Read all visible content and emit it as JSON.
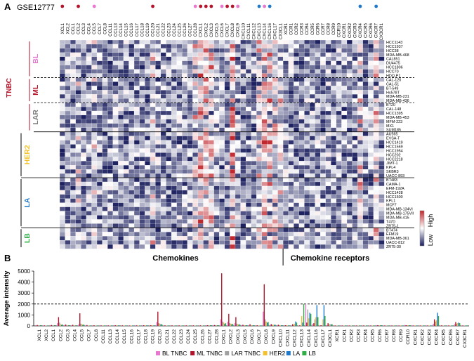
{
  "panel_a": {
    "letter": "A",
    "dataset": "GSE12777",
    "x_left_label": "Chemokines",
    "x_right_label": "Chemokine receptors",
    "colorbar": {
      "high": "High",
      "low": "Low"
    },
    "tnbc_label": "TNBC",
    "groups": [
      {
        "name": "BL",
        "color": "#e678d0"
      },
      {
        "name": "ML",
        "color": "#b5132a"
      },
      {
        "name": "LAR",
        "color": "#7a7a7a"
      },
      {
        "name": "HER2",
        "color": "#f2c12e"
      },
      {
        "name": "LA",
        "color": "#1f78c8"
      },
      {
        "name": "LB",
        "color": "#2fae48"
      }
    ],
    "genes": [
      "XCL1",
      "XCL2",
      "CCL1",
      "CCL2",
      "CCL3",
      "CCL4",
      "CCL5",
      "CCL7",
      "CCL8",
      "CCL11",
      "CCL13",
      "CCL14",
      "CCL15",
      "CCL16",
      "CCL17",
      "CCL18",
      "CCL19",
      "CCL20",
      "CCL21",
      "CCL22",
      "CCL23",
      "CCL24",
      "CCL25",
      "CCL26",
      "CCL27",
      "CCL28",
      "CXCL1",
      "CXCL2",
      "CXCL3",
      "CXCL5",
      "CXCL6",
      "CXCL7",
      "CXCL8",
      "CXCL9",
      "CXCL10",
      "CXCL11",
      "CXCL12",
      "CXCL13",
      "CXCL14",
      "CXCL16",
      "CXCL17",
      "CX3CL1",
      "XCR1",
      "CCR1",
      "CCR2",
      "CCR3",
      "CCR4",
      "CCR5",
      "CCR6",
      "CCR7",
      "CCR8",
      "CCR9",
      "CCR10",
      "CXCR1",
      "CXCR2",
      "CXCR3",
      "CXCR4",
      "CXCR5",
      "CXCR6",
      "CXCR7",
      "CX3CR1"
    ],
    "cell_lines": [
      "HCC1143",
      "HCC1937",
      "HCC38",
      "MDA-MB-468",
      "CAL851",
      "DU4475",
      "HCC1806",
      "HCC70",
      "HDQ-P1",
      "CAL-120",
      "CAL-51",
      "BT-549",
      "Hs578T",
      "MDA-MB-231",
      "MDA-MB-436",
      "BT20",
      "CAL-148",
      "HCC1395",
      "MDA-MB-453",
      "MFM-223",
      "MX1",
      "SUM185",
      "AU565",
      "EVSA-T",
      "HCC1419",
      "HCC1569",
      "HCC1954",
      "HCC202",
      "HCC2218",
      "JIMT-1",
      "KPL4",
      "SKBR3",
      "UACC-893",
      "BT483",
      "CAMA-1",
      "EFM-192A",
      "HCC1428",
      "HCC1500",
      "KPL1",
      "MCF7",
      "MDA-MB-134VI",
      "MDA-MB-175VII",
      "MDA-MB-415",
      "T47D",
      "ZR75-1",
      "BT474",
      "EFM19",
      "MDA-MB-361",
      "UACC-812",
      "ZR75-30"
    ],
    "markers": [
      {
        "gene": "CCL5",
        "color": "#e678d0"
      },
      {
        "gene": "XCL1",
        "color": "#b5132a"
      },
      {
        "gene": "CCL2",
        "color": "#b5132a"
      },
      {
        "gene": "CCL20",
        "color": "#b5132a"
      },
      {
        "gene": "CCL28",
        "color": "#e678d0"
      },
      {
        "gene": "CXCL1",
        "color": "#b5132a"
      },
      {
        "gene": "CXCL2",
        "color": "#b5132a"
      },
      {
        "gene": "CXCL3",
        "color": "#b5132a"
      },
      {
        "gene": "CXCL6",
        "color": "#e678d0"
      },
      {
        "gene": "CXCL7",
        "color": "#b5132a"
      },
      {
        "gene": "CXCL8",
        "color": "#b5132a"
      },
      {
        "gene": "CXCL9",
        "color": "#e678d0"
      },
      {
        "gene": "CXCL13",
        "color": "#1f78c8"
      },
      {
        "gene": "CXCL14",
        "color": "#e678d0"
      },
      {
        "gene": "CXCL16",
        "color": "#1f78c8"
      },
      {
        "gene": "CXCR4",
        "color": "#1f78c8"
      },
      {
        "gene": "CXCR7",
        "color": "#1f78c8"
      }
    ]
  },
  "panel_b": {
    "letter": "B"
  },
  "chart_data": [
    {
      "type": "heatmap",
      "title": "GSE12777",
      "xlabel": "Chemokines | Chemokine receptors",
      "ylabel": "",
      "scale": {
        "min_label": "Low",
        "max_label": "High",
        "colors": [
          "#1b1f5e",
          "#ffffff",
          "#c0282e"
        ]
      },
      "note": "Relative expression of chemokine / chemokine-receptor genes (columns) across breast cancer cell lines (rows), grouped by subtype BL, ML, LAR (TNBC), HER2, LA, LB."
    },
    {
      "type": "bar",
      "title": "",
      "xlabel": "",
      "ylabel": "Average intensity",
      "ylim": [
        0,
        5000
      ],
      "yticks": [
        0,
        1000,
        2000,
        3000,
        4000,
        5000
      ],
      "reference_line": 2000,
      "categories": [
        "XCL1",
        "XCL2",
        "CCL1",
        "CCL2",
        "CCL3",
        "CCL4",
        "CCL5",
        "CCL7",
        "CCL8",
        "CCL11",
        "CCL13",
        "CCL14",
        "CCL15",
        "CCL16",
        "CCL17",
        "CCL18",
        "CCL19",
        "CCL20",
        "CCL21",
        "CCL22",
        "CCL23",
        "CCL24",
        "CCL25",
        "CCL26",
        "CCL27",
        "CCL28",
        "CXCL1",
        "CXCL2",
        "CXCL3",
        "CXCL5",
        "CXCL6",
        "CXCL7",
        "CXCL8",
        "CXCL9",
        "CXCL10",
        "CXCL11",
        "CXCL12",
        "CXCL13",
        "CXCL14",
        "CXCL16",
        "CXCL17",
        "CX3CL1",
        "XCR1",
        "CCR1",
        "CCR2",
        "CCR3",
        "CCR4",
        "CCR5",
        "CCR6",
        "CCR7",
        "CCR8",
        "CCR9",
        "CCR10",
        "CXCR1",
        "CXCR2",
        "CXCR3",
        "CXCR4",
        "CXCR5",
        "CXCR6",
        "CXCR7",
        "CX3CR1"
      ],
      "series": [
        {
          "name": "BL TNBC",
          "color": "#e678d0",
          "values": [
            60,
            40,
            60,
            250,
            80,
            50,
            150,
            40,
            40,
            40,
            40,
            50,
            40,
            40,
            40,
            50,
            50,
            350,
            40,
            40,
            40,
            40,
            40,
            40,
            60,
            60,
            600,
            380,
            250,
            80,
            80,
            40,
            1300,
            120,
            80,
            60,
            50,
            40,
            2000,
            200,
            40,
            80,
            40,
            40,
            40,
            40,
            40,
            40,
            60,
            40,
            40,
            40,
            80,
            40,
            40,
            40,
            200,
            40,
            40,
            150,
            40
          ]
        },
        {
          "name": "ML TNBC",
          "color": "#b5132a",
          "values": [
            80,
            50,
            80,
            800,
            120,
            100,
            1150,
            80,
            60,
            50,
            50,
            60,
            50,
            40,
            50,
            60,
            60,
            1300,
            50,
            50,
            50,
            50,
            50,
            50,
            60,
            80,
            4800,
            1100,
            800,
            100,
            150,
            60,
            3800,
            150,
            100,
            60,
            150,
            50,
            300,
            250,
            60,
            250,
            40,
            40,
            40,
            40,
            40,
            40,
            60,
            40,
            40,
            40,
            60,
            40,
            40,
            40,
            600,
            50,
            40,
            350,
            40
          ]
        },
        {
          "name": "LAR TNBC",
          "color": "#a0a0a0",
          "values": [
            60,
            40,
            60,
            300,
            80,
            50,
            200,
            40,
            40,
            40,
            40,
            50,
            40,
            40,
            40,
            50,
            50,
            250,
            40,
            40,
            40,
            40,
            40,
            40,
            60,
            60,
            400,
            250,
            200,
            60,
            60,
            40,
            600,
            100,
            60,
            50,
            100,
            40,
            1500,
            600,
            60,
            150,
            40,
            40,
            40,
            40,
            40,
            40,
            60,
            40,
            40,
            40,
            60,
            40,
            40,
            40,
            400,
            40,
            40,
            200,
            40
          ]
        },
        {
          "name": "HER2",
          "color": "#f2c12e",
          "values": [
            60,
            40,
            60,
            150,
            60,
            50,
            150,
            40,
            40,
            40,
            40,
            50,
            40,
            40,
            40,
            50,
            50,
            200,
            40,
            40,
            40,
            40,
            40,
            40,
            60,
            60,
            300,
            200,
            150,
            60,
            60,
            40,
            400,
            100,
            60,
            50,
            200,
            900,
            700,
            800,
            600,
            150,
            40,
            40,
            40,
            40,
            40,
            40,
            60,
            40,
            40,
            40,
            60,
            40,
            40,
            40,
            500,
            40,
            40,
            250,
            40
          ]
        },
        {
          "name": "LA",
          "color": "#1f78c8",
          "values": [
            60,
            40,
            60,
            100,
            60,
            50,
            100,
            40,
            40,
            40,
            40,
            50,
            40,
            40,
            40,
            50,
            50,
            150,
            40,
            40,
            40,
            40,
            40,
            40,
            60,
            60,
            200,
            150,
            120,
            60,
            60,
            40,
            300,
            100,
            60,
            50,
            400,
            300,
            1200,
            1900,
            1900,
            150,
            40,
            40,
            40,
            40,
            40,
            40,
            60,
            40,
            40,
            40,
            60,
            40,
            40,
            40,
            1200,
            40,
            40,
            300,
            40
          ]
        },
        {
          "name": "LB",
          "color": "#2fae48",
          "values": [
            60,
            40,
            60,
            120,
            60,
            50,
            120,
            40,
            40,
            40,
            40,
            50,
            40,
            40,
            40,
            50,
            50,
            150,
            40,
            40,
            40,
            40,
            40,
            40,
            60,
            60,
            250,
            180,
            130,
            60,
            60,
            40,
            350,
            100,
            60,
            50,
            300,
            2000,
            1100,
            800,
            900,
            150,
            40,
            40,
            40,
            40,
            40,
            40,
            60,
            40,
            40,
            40,
            60,
            40,
            40,
            40,
            900,
            40,
            40,
            250,
            40
          ]
        }
      ],
      "legend": [
        "BL TNBC",
        "ML TNBC",
        "LAR TNBC",
        "HER2",
        "LA",
        "LB"
      ]
    }
  ]
}
